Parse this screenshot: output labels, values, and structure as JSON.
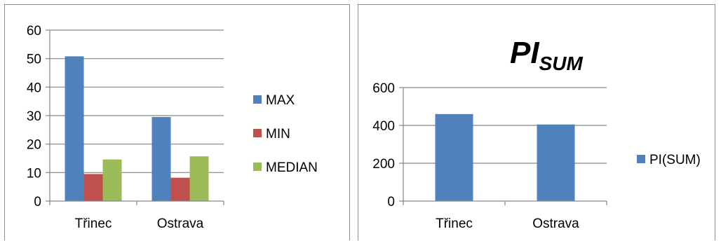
{
  "chart_data": [
    {
      "type": "bar",
      "title": "",
      "xlabel": "",
      "ylabel": "",
      "categories": [
        "Třinec",
        "Ostrava"
      ],
      "ylim": [
        0,
        60
      ],
      "yticks": [
        0,
        10,
        20,
        30,
        40,
        50,
        60
      ],
      "grid": true,
      "legend_position": "right",
      "series": [
        {
          "name": "MAX",
          "color": "#4f81bd",
          "values": [
            50.8,
            29.5
          ]
        },
        {
          "name": "MIN",
          "color": "#c0504d",
          "values": [
            9.5,
            8.2
          ]
        },
        {
          "name": "MEDIAN",
          "color": "#9bbb59",
          "values": [
            14.6,
            15.7
          ]
        }
      ]
    },
    {
      "type": "bar",
      "title": "PI",
      "title_subscript": "SUM",
      "xlabel": "",
      "ylabel": "",
      "categories": [
        "Třinec",
        "Ostrava"
      ],
      "ylim": [
        0,
        600
      ],
      "yticks": [
        0,
        200,
        400,
        600
      ],
      "grid": true,
      "legend_position": "right",
      "series": [
        {
          "name": "PI(SUM)",
          "color": "#4f81bd",
          "values": [
            460,
            405
          ]
        }
      ]
    }
  ]
}
